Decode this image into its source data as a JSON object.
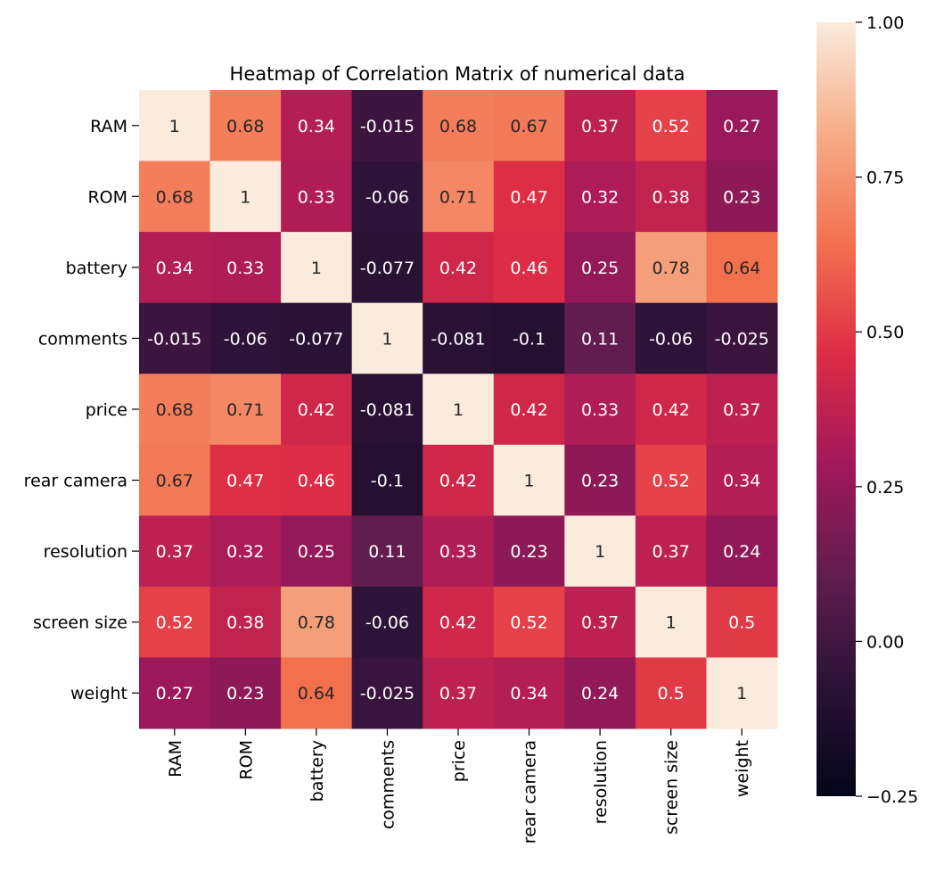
{
  "chart_data": {
    "type": "heatmap",
    "title": "Heatmap of Correlation Matrix of numerical data",
    "xlabel": "",
    "ylabel": "",
    "rows": [
      "RAM",
      "ROM",
      "battery",
      "comments",
      "price",
      "rear camera",
      "resolution",
      "screen size",
      "weight"
    ],
    "columns": [
      "RAM",
      "ROM",
      "battery",
      "comments",
      "price",
      "rear camera",
      "resolution",
      "screen size",
      "weight"
    ],
    "values": [
      [
        1,
        0.68,
        0.34,
        -0.015,
        0.68,
        0.67,
        0.37,
        0.52,
        0.27
      ],
      [
        0.68,
        1,
        0.33,
        -0.06,
        0.71,
        0.47,
        0.32,
        0.38,
        0.23
      ],
      [
        0.34,
        0.33,
        1,
        -0.077,
        0.42,
        0.46,
        0.25,
        0.78,
        0.64
      ],
      [
        -0.015,
        -0.06,
        -0.077,
        1,
        -0.081,
        -0.1,
        0.11,
        -0.06,
        -0.025
      ],
      [
        0.68,
        0.71,
        0.42,
        -0.081,
        1,
        0.42,
        0.33,
        0.42,
        0.37
      ],
      [
        0.67,
        0.47,
        0.46,
        -0.1,
        0.42,
        1,
        0.23,
        0.52,
        0.34
      ],
      [
        0.37,
        0.32,
        0.25,
        0.11,
        0.33,
        0.23,
        1,
        0.37,
        0.24
      ],
      [
        0.52,
        0.38,
        0.78,
        -0.06,
        0.42,
        0.52,
        0.37,
        1,
        0.5
      ],
      [
        0.27,
        0.23,
        0.64,
        -0.025,
        0.37,
        0.34,
        0.24,
        0.5,
        1
      ]
    ],
    "colorbar": {
      "min": -0.25,
      "max": 1.0,
      "ticks": [
        1.0,
        0.75,
        0.5,
        0.25,
        0.0,
        -0.25
      ],
      "tick_labels": [
        "1.00",
        "0.75",
        "0.50",
        "0.25",
        "0.00",
        "−0.25"
      ]
    },
    "colormap": "rocket",
    "colormap_stops": [
      "#03051a",
      "#2b1236",
      "#611d4f",
      "#a1185b",
      "#dd2c45",
      "#f3714f",
      "#f6ad87",
      "#faebdd"
    ],
    "grid": false,
    "legend": "colorbar-right"
  }
}
